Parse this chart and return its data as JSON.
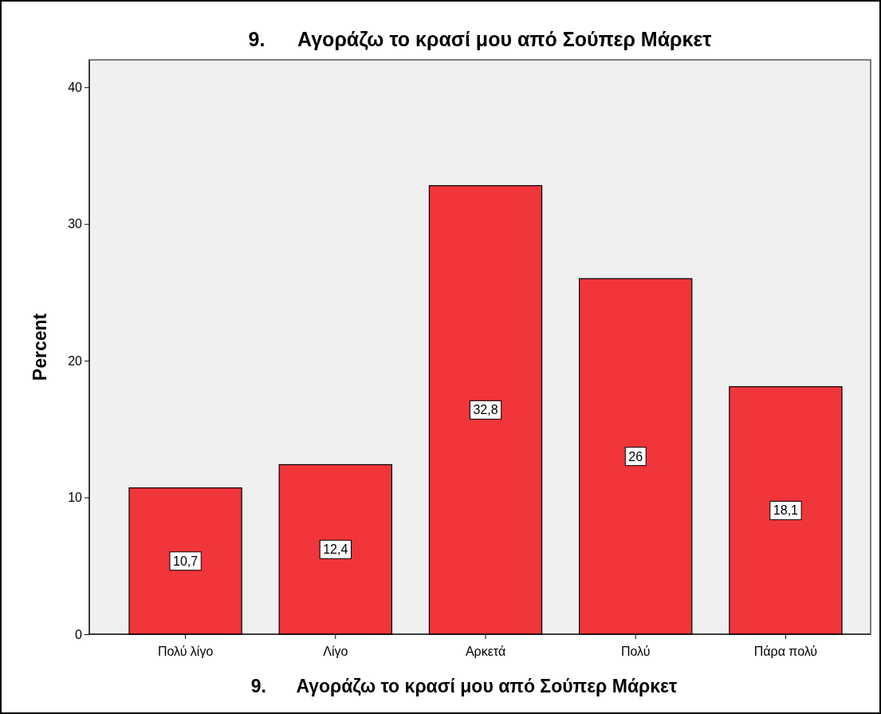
{
  "chart_data": {
    "type": "bar",
    "title": "9.      Αγοράζω το κρασί μου από Σούπερ Μάρκετ",
    "xlabel": "9.      Αγοράζω το κρασί μου από Σούπερ Μάρκετ",
    "ylabel": "Percent",
    "categories": [
      "Πολύ λίγο",
      "Λίγο",
      "Αρκετά",
      "Πολύ",
      "Πάρα πολύ"
    ],
    "values": [
      10.7,
      12.4,
      32.8,
      26,
      18.1
    ],
    "value_labels": [
      "10,7",
      "12,4",
      "32,8",
      "26",
      "18,1"
    ],
    "color": "#f0353b",
    "ylim": [
      0,
      42
    ],
    "yticks": [
      0,
      10,
      20,
      30,
      40
    ],
    "grid": false
  }
}
